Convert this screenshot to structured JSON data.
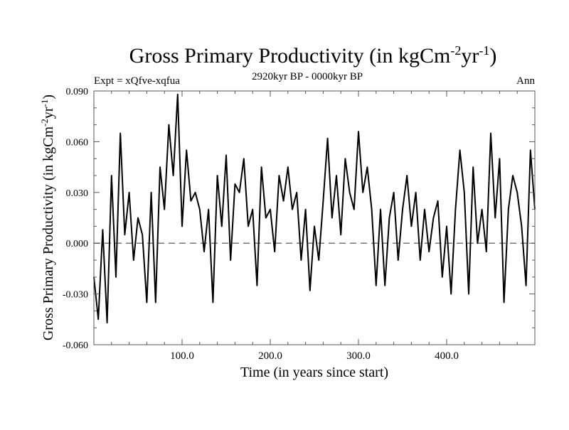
{
  "chart_data": {
    "type": "line",
    "title": {
      "main": "Gross Primary Productivity (in kgCm",
      "sup1": "-2",
      "mid": "yr",
      "sup2": "-1",
      "end": ")"
    },
    "subtitle_left": "Expt = xQfve-xqfua",
    "subtitle_center": "2920kyr BP - 0000kyr BP",
    "subtitle_right": "Ann",
    "xlabel": "Time (in years since start)",
    "ylabel": {
      "main": "Gross Primary Productivity (in kgCm",
      "sup1": "-2",
      "mid": "yr",
      "sup2": "-1",
      "end": ")"
    },
    "xlim": [
      0,
      500
    ],
    "ylim": [
      -0.06,
      0.09
    ],
    "xticks": [
      100,
      200,
      300,
      400
    ],
    "xtick_labels": [
      "100.0",
      "200.0",
      "300.0",
      "400.0"
    ],
    "yticks": [
      -0.06,
      -0.03,
      0.0,
      0.03,
      0.06,
      0.09
    ],
    "ytick_labels": [
      "-0.060",
      "-0.030",
      "0.000",
      "0.030",
      "0.060",
      "0.090"
    ],
    "reference_line": 0.0,
    "series": [
      {
        "name": "Ann",
        "color": "#000000",
        "x": [
          0,
          5,
          10,
          15,
          20,
          25,
          30,
          35,
          40,
          45,
          50,
          55,
          60,
          65,
          70,
          75,
          80,
          85,
          90,
          95,
          100,
          105,
          110,
          115,
          120,
          125,
          130,
          135,
          140,
          145,
          150,
          155,
          160,
          165,
          170,
          175,
          180,
          185,
          190,
          195,
          200,
          205,
          210,
          215,
          220,
          225,
          230,
          235,
          240,
          245,
          250,
          255,
          260,
          265,
          270,
          275,
          280,
          285,
          290,
          295,
          300,
          305,
          310,
          315,
          320,
          325,
          330,
          335,
          340,
          345,
          350,
          355,
          360,
          365,
          370,
          375,
          380,
          385,
          390,
          395,
          400,
          405,
          410,
          415,
          420,
          425,
          430,
          435,
          440,
          445,
          450,
          455,
          460,
          465,
          470,
          475,
          480,
          485,
          490,
          495,
          500
        ],
        "values": [
          -0.02,
          -0.045,
          0.008,
          -0.047,
          0.04,
          -0.02,
          0.065,
          0.005,
          0.03,
          -0.01,
          0.015,
          0.005,
          -0.035,
          0.03,
          -0.035,
          0.045,
          0.02,
          0.07,
          0.04,
          0.088,
          0.01,
          0.055,
          0.025,
          0.03,
          0.02,
          -0.005,
          0.02,
          -0.035,
          0.04,
          0.01,
          0.052,
          -0.01,
          0.035,
          0.03,
          0.05,
          0.01,
          0.02,
          -0.025,
          0.045,
          0.015,
          0.02,
          -0.005,
          0.04,
          0.025,
          0.045,
          0.02,
          0.03,
          -0.01,
          0.02,
          -0.028,
          0.01,
          -0.01,
          0.025,
          0.062,
          0.015,
          0.04,
          0.005,
          0.05,
          0.03,
          0.02,
          0.066,
          0.03,
          0.045,
          0.02,
          -0.025,
          0.02,
          -0.025,
          0.015,
          0.03,
          -0.01,
          0.02,
          0.04,
          0.01,
          0.03,
          -0.01,
          0.02,
          -0.005,
          0.015,
          0.025,
          -0.02,
          0.01,
          -0.03,
          0.02,
          0.055,
          0.03,
          -0.03,
          0.045,
          0.0,
          0.02,
          -0.005,
          0.065,
          0.015,
          0.05,
          -0.035,
          0.02,
          0.04,
          0.03,
          0.01,
          -0.025,
          0.055,
          0.02
        ]
      }
    ]
  }
}
